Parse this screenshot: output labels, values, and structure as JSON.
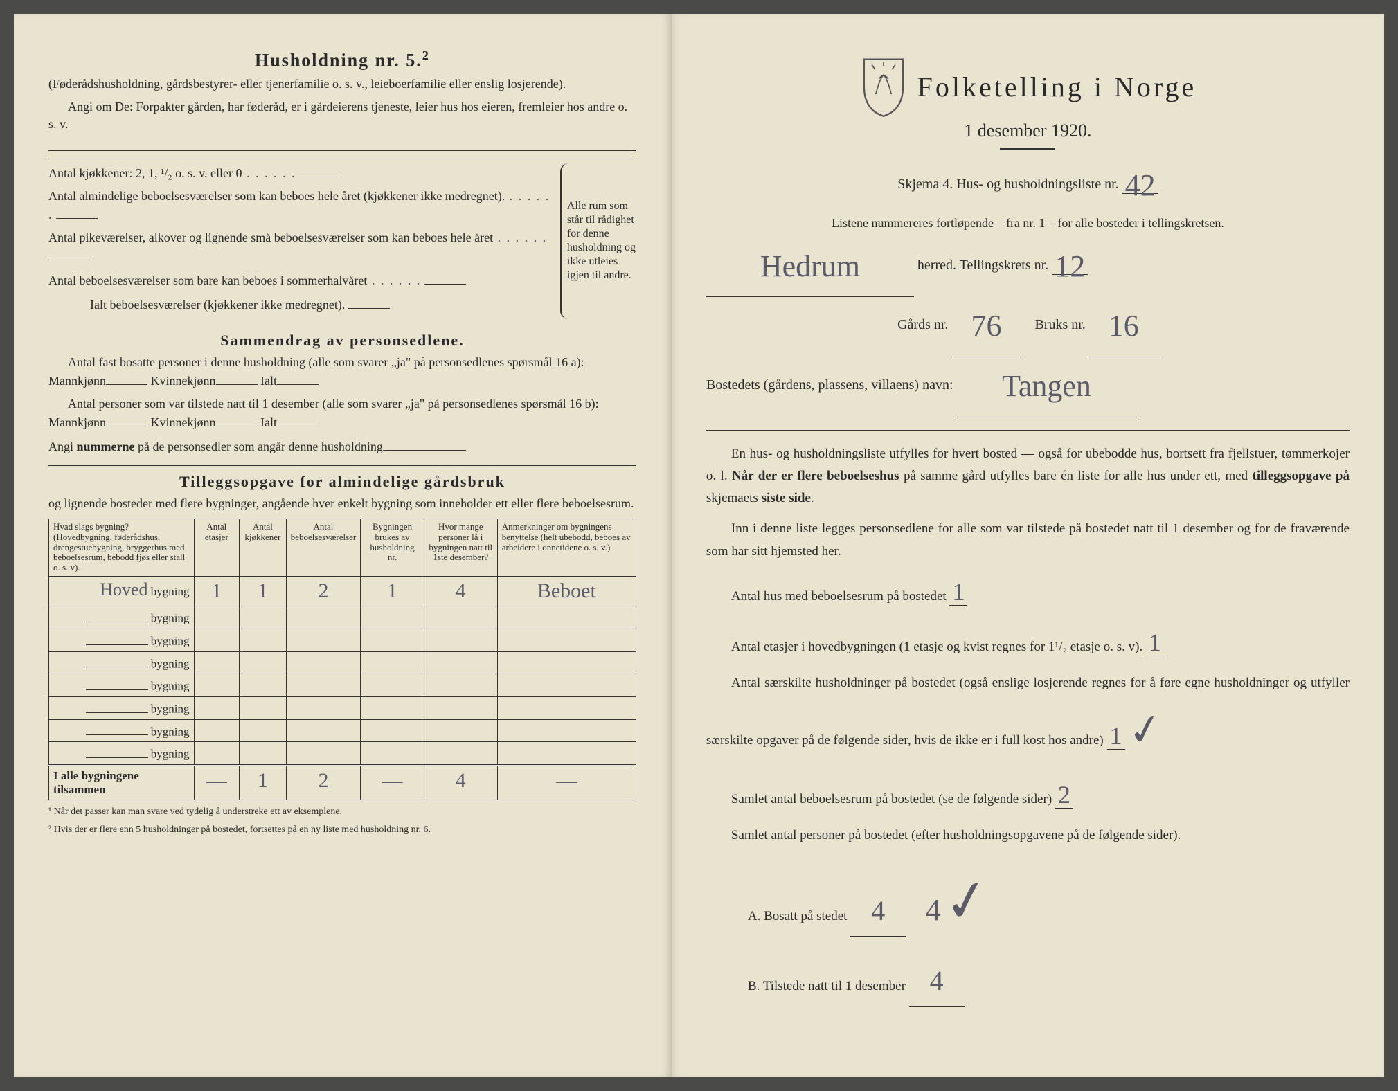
{
  "left": {
    "heading": "Husholdning nr. 5.",
    "heading_sup": "2",
    "sub1": "(Føderådshusholdning, gårdsbestyrer- eller tjenerfamilie o. s. v., leieboerfamilie eller enslig losjerende).",
    "sub2": "Angi om De: Forpakter gården, har føderåd, er i gårdeierens tjeneste, leier hus hos eieren, fremleier hos andre o. s. v.",
    "kitchens_label": "Antal kjøkkener: 2, 1, ¹/₂ o. s. v. eller 0",
    "rooms1": "Antal almindelige beboelsesværelser som kan beboes hele året (kjøkkener ikke medregnet).",
    "rooms2": "Antal pikeværelser, alkover og lignende små beboelsesværelser som kan beboes hele året",
    "rooms3": "Antal beboelsesværelser som bare kan beboes i sommerhalvåret",
    "rooms_total": "Ialt beboelsesværelser (kjøkkener ikke medregnet).",
    "bracket_note": "Alle rum som står til rådighet for denne husholdning og ikke utleies igjen til andre.",
    "summary_heading": "Sammendrag av personsedlene.",
    "sum_line1": "Antal fast bosatte personer i denne husholdning (alle som svarer „ja\" på personsedlenes spørsmål 16 a): Mannkjønn",
    "sum_kv": "Kvinnekjønn",
    "sum_ialt": "Ialt",
    "sum_line2": "Antal personer som var tilstede natt til 1 desember (alle som svarer „ja\" på personsedlenes spørsmål 16 b): Mannkjønn",
    "sum_line3_a": "Angi ",
    "sum_line3_b": "nummerne",
    "sum_line3_c": " på de personsedler som angår denne husholdning",
    "tillegg_heading": "Tilleggsopgave for almindelige gårdsbruk",
    "tillegg_sub": "og lignende bosteder med flere bygninger, angående hver enkelt bygning som inneholder ett eller flere beboelsesrum.",
    "table": {
      "headers": [
        "Hvad slags bygning?\n(Hovedbygning, føderådshus, drengestuebygning, bryggerhus med beboelsesrum, bebodd fjøs eller stall o. s. v).",
        "Antal etasjer",
        "Antal kjøkkener",
        "Antal beboelsesværelser",
        "Bygningen brukes av husholdning nr.",
        "Hvor mange personer lå i bygningen natt til 1ste desember?",
        "Anmerkninger om bygningens benyttelse (helt ubebodd, beboes av arbeidere i onnetidene o. s. v.)"
      ],
      "row_label": "bygning",
      "first_row_prefix": "Hoved",
      "rows": [
        {
          "prefix": "Hoved",
          "a": "1",
          "b": "1",
          "c": "2",
          "d": "1",
          "e": "4",
          "f": "Beboet"
        },
        {
          "prefix": "",
          "a": "",
          "b": "",
          "c": "",
          "d": "",
          "e": "",
          "f": ""
        },
        {
          "prefix": "",
          "a": "",
          "b": "",
          "c": "",
          "d": "",
          "e": "",
          "f": ""
        },
        {
          "prefix": "",
          "a": "",
          "b": "",
          "c": "",
          "d": "",
          "e": "",
          "f": ""
        },
        {
          "prefix": "",
          "a": "",
          "b": "",
          "c": "",
          "d": "",
          "e": "",
          "f": ""
        },
        {
          "prefix": "",
          "a": "",
          "b": "",
          "c": "",
          "d": "",
          "e": "",
          "f": ""
        },
        {
          "prefix": "",
          "a": "",
          "b": "",
          "c": "",
          "d": "",
          "e": "",
          "f": ""
        },
        {
          "prefix": "",
          "a": "",
          "b": "",
          "c": "",
          "d": "",
          "e": "",
          "f": ""
        }
      ],
      "total_label": "I alle bygningene tilsammen",
      "totals": {
        "a": "—",
        "b": "1",
        "c": "2",
        "d": "—",
        "e": "4",
        "f": "—"
      }
    },
    "foot1": "¹ Når det passer kan man svare ved tydelig å understreke ett av eksemplene.",
    "foot2": "² Hvis der er flere enn 5 husholdninger på bostedet, fortsettes på en ny liste med husholdning nr. 6."
  },
  "right": {
    "title": "Folketelling i Norge",
    "date": "1 desember 1920.",
    "skjema_a": "Skjema 4.  Hus- og husholdningsliste nr.",
    "skjema_val": "42",
    "liste_note": "Listene nummereres fortløpende – fra nr. 1 – for alle bosteder i tellingskretsen.",
    "herred_val": "Hedrum",
    "herred_lbl": "herred.   Tellingskrets nr.",
    "krets_val": "12",
    "gards_lbl": "Gårds nr.",
    "gards_val": "76",
    "bruks_lbl": "Bruks nr.",
    "bruks_val": "16",
    "bosted_lbl": "Bostedets (gårdens, plassens, villaens) navn:",
    "bosted_val": "Tangen",
    "para1": "En hus- og husholdningsliste utfylles for hvert bosted — også for ubebodde hus, bortsett fra fjellstuer, tømmerkojer o. l.  Når der er flere beboelseshus på samme gård utfylles bare én liste for alle hus under ett, med tilleggsopgave på skjemaets siste side.",
    "para2": "Inn i denne liste legges personsedlene for alle som var tilstede på bostedet natt til 1 desember og for de fraværende som har sitt hjemsted her.",
    "q1": "Antal hus med beboelsesrum på bostedet",
    "q1_val": "1",
    "q2": "Antal etasjer i hovedbygningen (1 etasje og kvist regnes for 1¹/₂ etasje o. s. v).",
    "q2_val": "1",
    "q3": "Antal særskilte husholdninger på bostedet (også enslige losjerende regnes for å føre egne husholdninger og utfyller særskilte opgaver på de følgende sider, hvis de ikke er i full kost hos andre)",
    "q3_val": "1",
    "q4": "Samlet antal beboelsesrum på bostedet (se de følgende sider)",
    "q4_val": "2",
    "q5": "Samlet antal personer på bostedet (efter husholdningsopgavene på de følgende sider).",
    "qA": "A.  Bosatt på stedet",
    "qA_val": "4",
    "qB": "B.  Tilstede natt til 1 desember",
    "qB_val": "4",
    "checkmark": "✓"
  },
  "colors": {
    "paper": "#e8e4d0",
    "ink": "#2a2a2a",
    "handwriting": "#5a5a68",
    "background": "#4a4a48"
  }
}
